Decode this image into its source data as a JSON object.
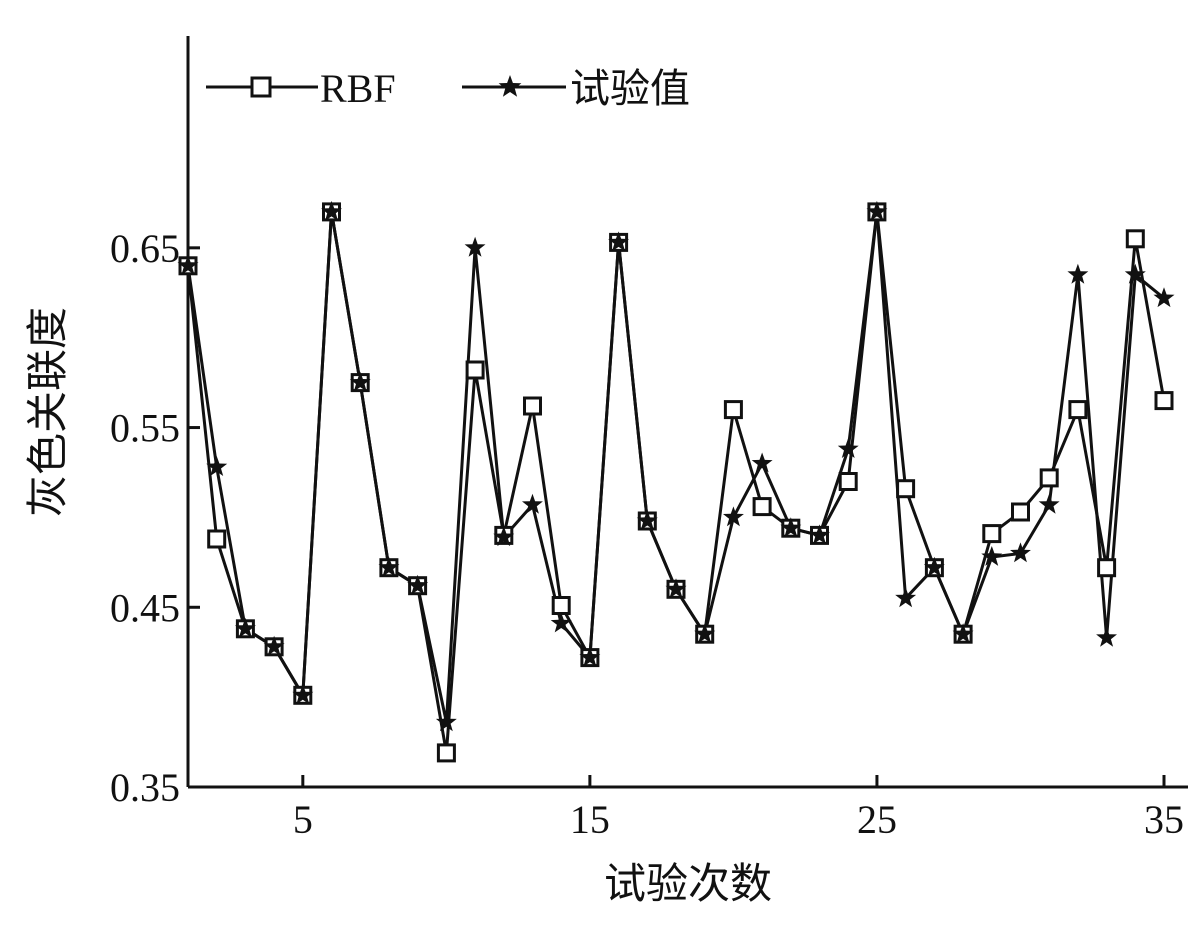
{
  "chart_data": {
    "type": "line",
    "xlabel": "试验次数",
    "ylabel": "灰色关联度",
    "xlim": [
      1,
      35
    ],
    "ylim": [
      0.35,
      0.71
    ],
    "xticks": [
      5,
      15,
      25,
      35
    ],
    "yticks": [
      0.35,
      0.45,
      0.55,
      0.65
    ],
    "xtick_labels": [
      "5",
      "15",
      "25",
      "35"
    ],
    "ytick_labels": [
      "0.35",
      "0.45",
      "0.55",
      "0.65"
    ],
    "grid": false,
    "legend_position": "top-left",
    "x": [
      1,
      2,
      3,
      4,
      5,
      6,
      7,
      8,
      9,
      10,
      11,
      12,
      13,
      14,
      15,
      16,
      17,
      18,
      19,
      20,
      21,
      22,
      23,
      24,
      25,
      26,
      27,
      28,
      29,
      30,
      31,
      32,
      33,
      34,
      35
    ],
    "series": [
      {
        "name": "RBF",
        "marker": "square",
        "color": "#111111",
        "values": [
          0.64,
          0.488,
          0.438,
          0.428,
          0.401,
          0.67,
          0.575,
          0.472,
          0.462,
          0.369,
          0.582,
          0.49,
          0.562,
          0.451,
          0.422,
          0.653,
          0.498,
          0.46,
          0.435,
          0.56,
          0.506,
          0.494,
          0.49,
          0.52,
          0.67,
          0.516,
          0.472,
          0.435,
          0.491,
          0.503,
          0.522,
          0.56,
          0.472,
          0.655,
          0.565
        ]
      },
      {
        "name": "试验值",
        "marker": "star",
        "color": "#111111",
        "values": [
          0.64,
          0.528,
          0.438,
          0.428,
          0.401,
          0.67,
          0.575,
          0.472,
          0.462,
          0.386,
          0.65,
          0.489,
          0.507,
          0.441,
          0.422,
          0.653,
          0.498,
          0.46,
          0.435,
          0.5,
          0.53,
          0.494,
          0.49,
          0.538,
          0.67,
          0.455,
          0.472,
          0.435,
          0.478,
          0.48,
          0.507,
          0.635,
          0.433,
          0.635,
          0.622
        ]
      }
    ]
  }
}
